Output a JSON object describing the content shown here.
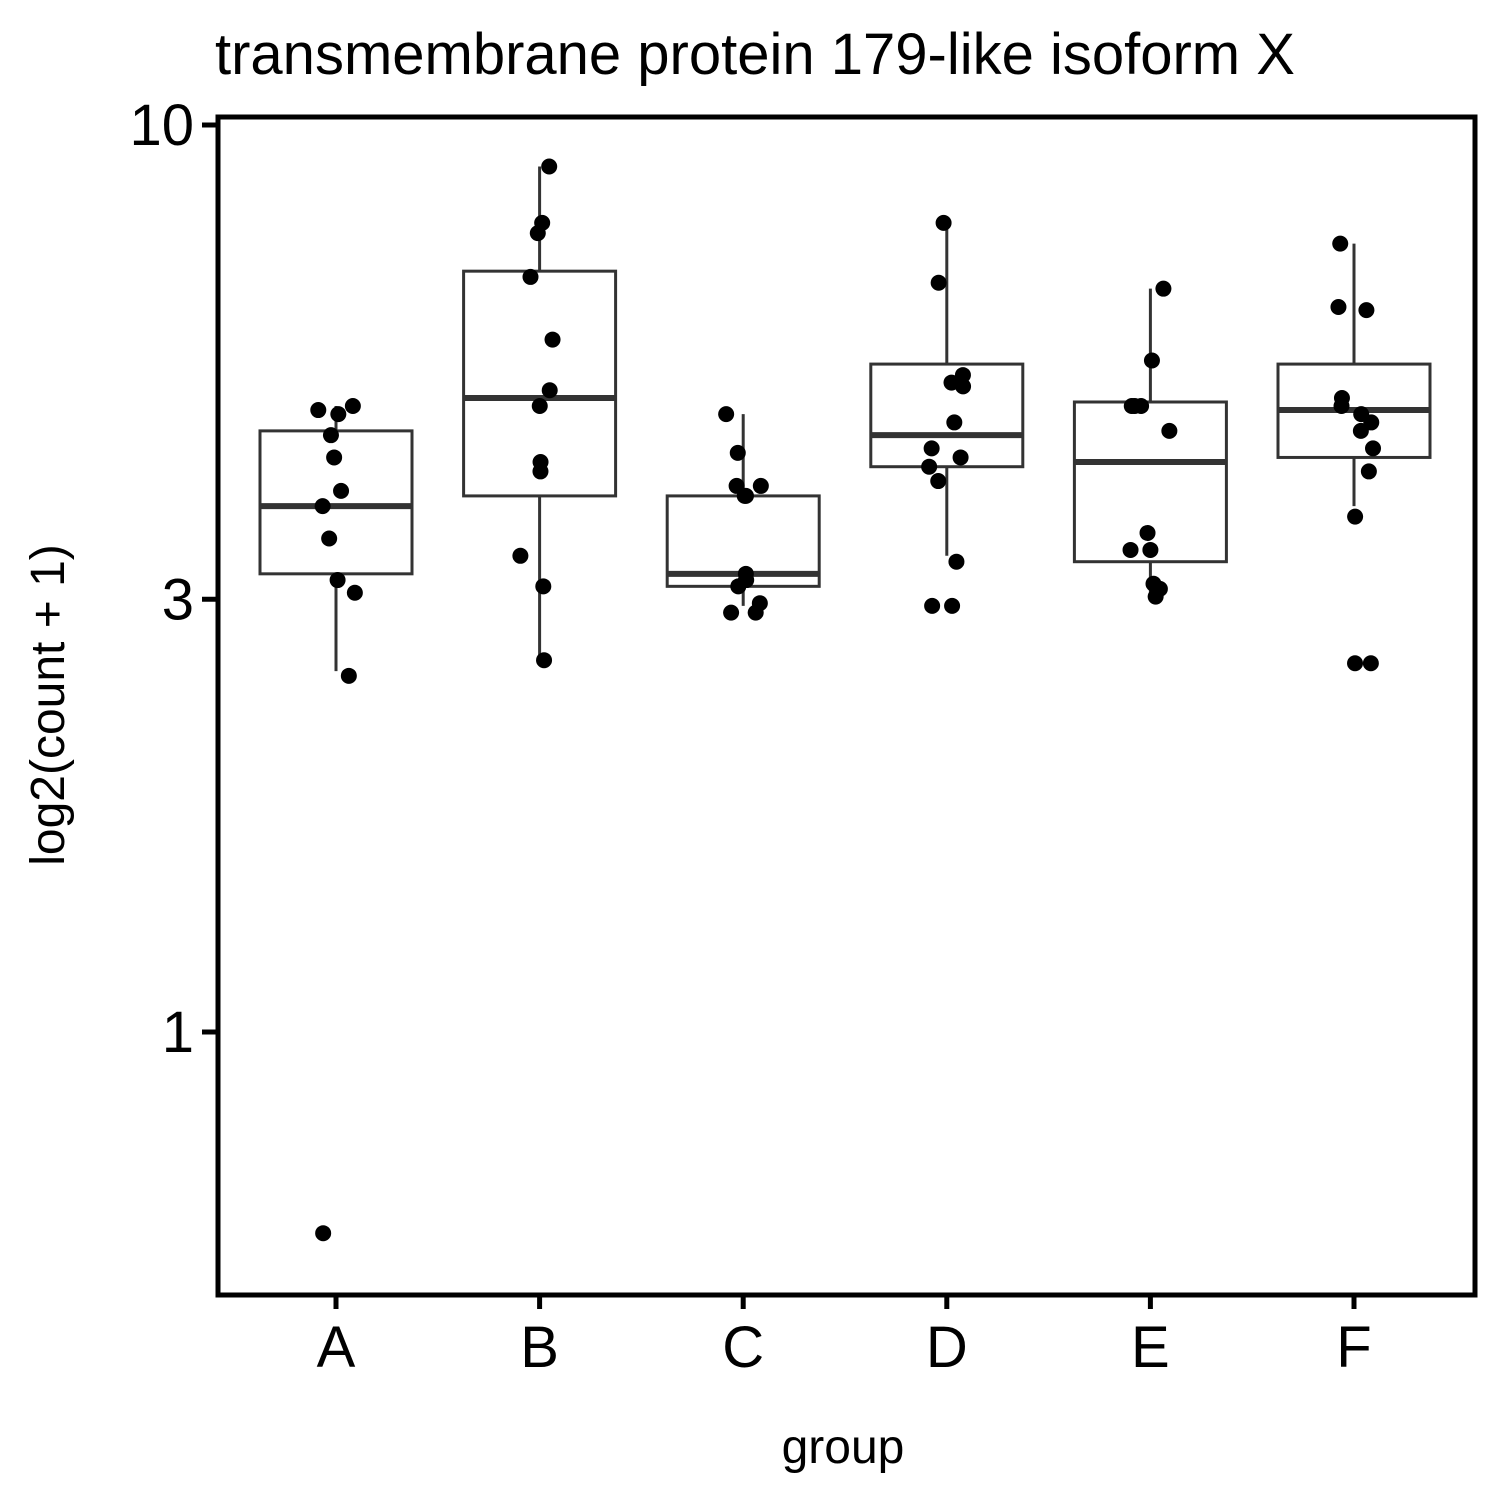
{
  "chart_data": {
    "type": "box",
    "title": "transmembrane protein 179-like isoform X",
    "xlabel": "group",
    "ylabel": "log2(count + 1)",
    "y_scale": "log10",
    "ylim": [
      0.58,
      10
    ],
    "y_ticks": [
      {
        "value": 1,
        "label": "1"
      },
      {
        "value": 3,
        "label": "3"
      },
      {
        "value": 10,
        "label": "10"
      }
    ],
    "grid": false,
    "categories": [
      "A",
      "B",
      "C",
      "D",
      "E",
      "F"
    ],
    "boxes": [
      {
        "group": "A",
        "min": 2.5,
        "q1": 3.2,
        "median": 3.8,
        "q3": 4.6,
        "max": 4.9
      },
      {
        "group": "B",
        "min": 2.6,
        "q1": 3.9,
        "median": 5.0,
        "q3": 6.9,
        "max": 9.0
      },
      {
        "group": "C",
        "min": 2.95,
        "q1": 3.1,
        "median": 3.2,
        "q3": 3.9,
        "max": 4.8
      },
      {
        "group": "D",
        "min": 3.35,
        "q1": 4.2,
        "median": 4.55,
        "q3": 5.45,
        "max": 7.8
      },
      {
        "group": "E",
        "min": 3.05,
        "q1": 3.3,
        "median": 4.25,
        "q3": 4.95,
        "max": 6.6
      },
      {
        "group": "F",
        "min": 3.8,
        "q1": 4.3,
        "median": 4.85,
        "q3": 5.45,
        "max": 7.4
      }
    ],
    "points": [
      {
        "group": "A",
        "values": [
          4.9,
          4.85,
          4.8,
          4.55,
          4.3,
          3.95,
          3.8,
          3.5,
          3.15,
          3.05,
          2.47,
          0.6
        ]
      },
      {
        "group": "B",
        "values": [
          9.0,
          7.8,
          7.6,
          6.8,
          5.8,
          5.1,
          4.9,
          4.25,
          4.15,
          3.35,
          3.1,
          2.57
        ]
      },
      {
        "group": "C",
        "values": [
          4.8,
          4.35,
          4.0,
          4.0,
          3.9,
          3.9,
          3.2,
          3.15,
          3.15,
          3.1,
          2.97,
          2.9,
          2.9
        ]
      },
      {
        "group": "D",
        "values": [
          7.8,
          6.7,
          5.3,
          5.2,
          5.15,
          4.7,
          4.4,
          4.3,
          4.2,
          4.05,
          3.3,
          2.95,
          2.95
        ]
      },
      {
        "group": "E",
        "values": [
          6.6,
          5.5,
          4.9,
          4.9,
          4.9,
          4.6,
          3.55,
          3.4,
          3.4,
          3.12,
          3.08,
          3.02
        ]
      },
      {
        "group": "F",
        "values": [
          7.4,
          6.3,
          6.25,
          5.0,
          4.9,
          4.8,
          4.7,
          4.6,
          4.4,
          4.15,
          3.7,
          2.55,
          2.55
        ]
      }
    ]
  }
}
